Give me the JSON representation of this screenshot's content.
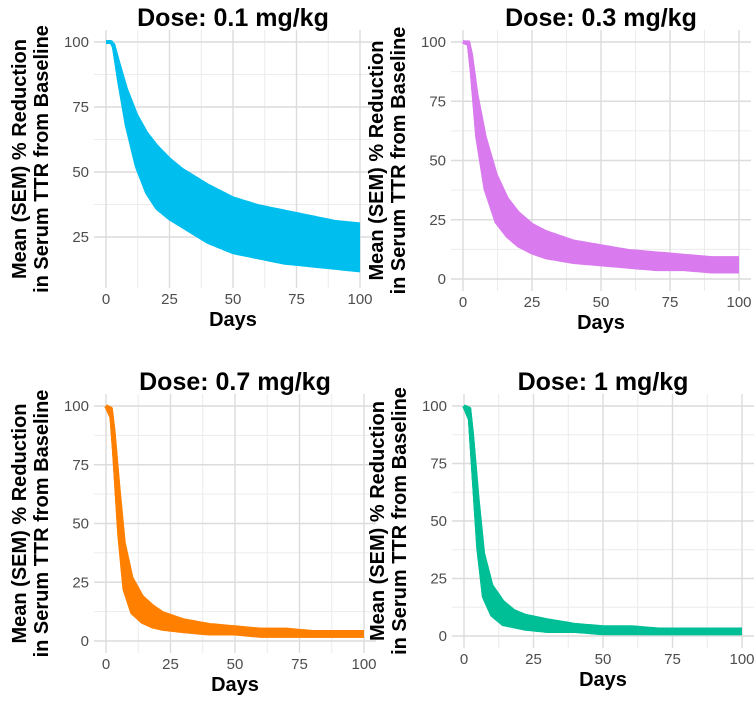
{
  "chart_data": [
    {
      "type": "line",
      "title": "Dose: 0.1 mg/kg",
      "xlabel": "Days",
      "ylabel_line1": "Mean (SEM) % Reduction",
      "ylabel_line2": "in Serum TTR from Baseline",
      "xlim": [
        0,
        100
      ],
      "ylim": [
        10,
        100
      ],
      "x_ticks": [
        0,
        25,
        50,
        75,
        100
      ],
      "x_tick_labels": [
        "0",
        "25",
        "50",
        "75",
        "100"
      ],
      "y_ticks": [
        25,
        50,
        75,
        100
      ],
      "y_tick_labels": [
        "25",
        "50",
        "75",
        "100"
      ],
      "color": "#00BFEF",
      "series": [
        {
          "name": "upper bound",
          "x": [
            0,
            2,
            3,
            5,
            8,
            12,
            16,
            20,
            25,
            30,
            40,
            50,
            60,
            70,
            80,
            90,
            100
          ],
          "values": [
            100,
            100,
            99,
            92,
            82,
            72,
            65,
            60,
            55,
            51,
            45,
            40,
            37,
            35,
            33,
            31,
            30
          ]
        },
        {
          "name": "lower bound",
          "x": [
            0,
            2,
            3,
            5,
            8,
            12,
            16,
            20,
            25,
            30,
            40,
            50,
            60,
            70,
            80,
            90,
            100
          ],
          "values": [
            100,
            100,
            98,
            85,
            68,
            52,
            42,
            36,
            32,
            29,
            23,
            19,
            17,
            15,
            14,
            13,
            12
          ]
        }
      ]
    },
    {
      "type": "line",
      "title": "Dose: 0.3 mg/kg",
      "xlabel": "Days",
      "ylabel_line1": "Mean (SEM) % Reduction",
      "ylabel_line2": "in Serum TTR from Baseline",
      "xlim": [
        0,
        100
      ],
      "ylim": [
        0,
        100
      ],
      "x_ticks": [
        0,
        25,
        50,
        75,
        100
      ],
      "x_tick_labels": [
        "0",
        "25",
        "50",
        "75",
        "100"
      ],
      "y_ticks": [
        0,
        25,
        50,
        75,
        100
      ],
      "y_tick_labels": [
        "0",
        "25",
        "50",
        "75",
        "100"
      ],
      "color": "#D97BEE",
      "series": [
        {
          "name": "upper bound",
          "x": [
            0,
            2,
            3,
            5,
            8,
            12,
            16,
            20,
            25,
            30,
            40,
            50,
            60,
            70,
            80,
            90,
            100
          ],
          "values": [
            100,
            100,
            95,
            78,
            60,
            44,
            34,
            28,
            23,
            20,
            16,
            14,
            12,
            11,
            10,
            9,
            9
          ]
        },
        {
          "name": "lower bound",
          "x": [
            0,
            2,
            3,
            5,
            8,
            12,
            16,
            20,
            25,
            30,
            40,
            50,
            60,
            70,
            80,
            90,
            100
          ],
          "values": [
            100,
            99,
            88,
            60,
            38,
            24,
            18,
            14,
            11,
            9,
            7,
            6,
            5,
            4,
            4,
            3,
            3
          ]
        }
      ]
    },
    {
      "type": "line",
      "title": "Dose: 0.7 mg/kg",
      "xlabel": "Days",
      "ylabel_line1": "Mean (SEM) % Reduction",
      "ylabel_line2": "in Serum TTR from Baseline",
      "xlim": [
        0,
        100
      ],
      "ylim": [
        0,
        100
      ],
      "x_ticks": [
        0,
        25,
        50,
        75,
        100
      ],
      "x_tick_labels": [
        "0",
        "25",
        "50",
        "75",
        "100"
      ],
      "y_ticks": [
        0,
        25,
        50,
        75,
        100
      ],
      "y_tick_labels": [
        "0",
        "25",
        "50",
        "75",
        "100"
      ],
      "color": "#FF8000",
      "series": [
        {
          "name": "upper bound",
          "x": [
            0,
            2,
            3,
            5,
            7,
            10,
            14,
            18,
            22,
            30,
            40,
            50,
            60,
            70,
            80,
            90,
            100
          ],
          "values": [
            100,
            99,
            90,
            65,
            42,
            27,
            19,
            15,
            12,
            9,
            7,
            6,
            5,
            5,
            4,
            4,
            4
          ]
        },
        {
          "name": "lower bound",
          "x": [
            0,
            2,
            3,
            5,
            7,
            10,
            14,
            18,
            22,
            30,
            40,
            50,
            60,
            70,
            80,
            90,
            100
          ],
          "values": [
            100,
            95,
            80,
            45,
            22,
            12,
            8,
            6,
            5,
            4,
            3,
            3,
            2,
            2,
            2,
            2,
            2
          ]
        }
      ]
    },
    {
      "type": "line",
      "title": "Dose: 1 mg/kg",
      "xlabel": "Days",
      "ylabel_line1": "Mean (SEM) % Reduction",
      "ylabel_line2": "in Serum TTR from Baseline",
      "xlim": [
        0,
        100
      ],
      "ylim": [
        0,
        100
      ],
      "x_ticks": [
        0,
        25,
        50,
        75,
        100
      ],
      "x_tick_labels": [
        "0",
        "25",
        "50",
        "75",
        "100"
      ],
      "y_ticks": [
        0,
        25,
        50,
        75,
        100
      ],
      "y_tick_labels": [
        "0",
        "25",
        "50",
        "75",
        "100"
      ],
      "color": "#00BF96",
      "series": [
        {
          "name": "upper bound",
          "x": [
            0,
            2,
            3,
            5,
            7,
            10,
            14,
            18,
            22,
            30,
            40,
            50,
            60,
            70,
            80,
            90,
            100
          ],
          "values": [
            100,
            99,
            88,
            60,
            36,
            22,
            15,
            11,
            9,
            7,
            5,
            4,
            4,
            3,
            3,
            3,
            3
          ]
        },
        {
          "name": "lower bound",
          "x": [
            0,
            2,
            3,
            5,
            7,
            10,
            14,
            18,
            22,
            30,
            40,
            50,
            60,
            70,
            80,
            90,
            100
          ],
          "values": [
            100,
            94,
            75,
            38,
            17,
            9,
            5,
            4,
            3,
            2,
            2,
            1,
            1,
            1,
            1,
            1,
            1
          ]
        }
      ]
    }
  ]
}
